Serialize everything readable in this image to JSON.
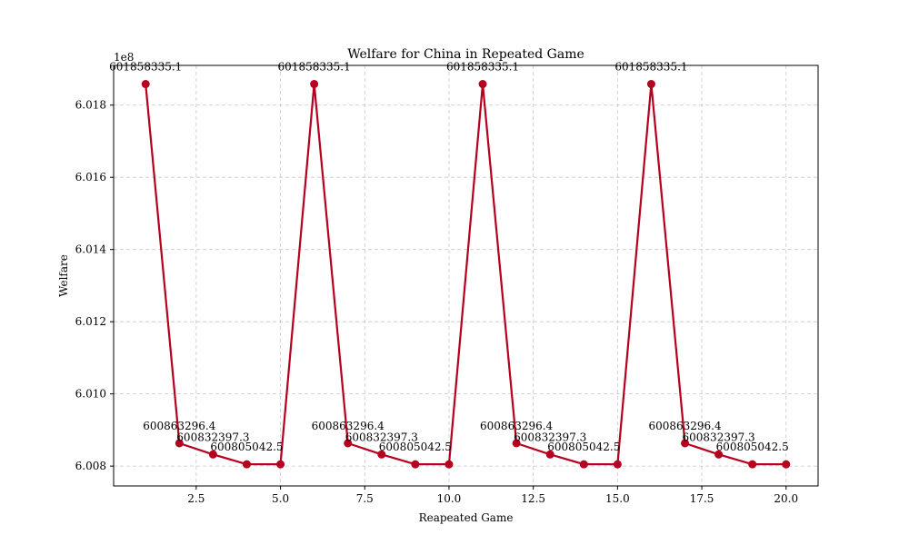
{
  "chart_data": {
    "type": "line",
    "title": "Welfare for China in Repeated Game",
    "xlabel": "Reapeated Game",
    "ylabel": "Welfare",
    "offset_text": "1e8",
    "xlim": [
      0.05,
      20.95
    ],
    "ylim": [
      600745000,
      601910000
    ],
    "xticks": [
      2.5,
      5.0,
      7.5,
      10.0,
      12.5,
      15.0,
      17.5,
      20.0
    ],
    "xtick_labels": [
      "2.5",
      "5.0",
      "7.5",
      "10.0",
      "12.5",
      "15.0",
      "17.5",
      "20.0"
    ],
    "yticks": [
      600800000,
      601000000,
      601200000,
      601400000,
      601600000,
      601800000
    ],
    "ytick_labels": [
      "6.008",
      "6.010",
      "6.012",
      "6.014",
      "6.016",
      "6.018"
    ],
    "grid": true,
    "legend": "none",
    "series": [
      {
        "color": "#b5001f",
        "marker": "circle",
        "x": [
          1,
          2,
          3,
          4,
          5,
          6,
          7,
          8,
          9,
          10,
          11,
          12,
          13,
          14,
          15,
          16,
          17,
          18,
          19,
          20
        ],
        "y": [
          601858335.1,
          600863296.4,
          600832397.3,
          600805042.5,
          600805042.5,
          601858335.1,
          600863296.4,
          600832397.3,
          600805042.5,
          600805042.5,
          601858335.1,
          600863296.4,
          600832397.3,
          600805042.5,
          600805042.5,
          601858335.1,
          600863296.4,
          600832397.3,
          600805042.5,
          600805042.5
        ]
      }
    ],
    "annotations": [
      {
        "x": 1,
        "y": 601858335.1,
        "text": "601858335.1"
      },
      {
        "x": 2,
        "y": 600863296.4,
        "text": "600863296.4"
      },
      {
        "x": 3,
        "y": 600832397.3,
        "text": "600832397.3"
      },
      {
        "x": 4,
        "y": 600805042.5,
        "text": "600805042.5"
      },
      {
        "x": 6,
        "y": 601858335.1,
        "text": "601858335.1"
      },
      {
        "x": 7,
        "y": 600863296.4,
        "text": "600863296.4"
      },
      {
        "x": 8,
        "y": 600832397.3,
        "text": "600832397.3"
      },
      {
        "x": 9,
        "y": 600805042.5,
        "text": "600805042.5"
      },
      {
        "x": 11,
        "y": 601858335.1,
        "text": "601858335.1"
      },
      {
        "x": 12,
        "y": 600863296.4,
        "text": "600863296.4"
      },
      {
        "x": 13,
        "y": 600832397.3,
        "text": "600832397.3"
      },
      {
        "x": 14,
        "y": 600805042.5,
        "text": "600805042.5"
      },
      {
        "x": 16,
        "y": 601858335.1,
        "text": "601858335.1"
      },
      {
        "x": 17,
        "y": 600863296.4,
        "text": "600863296.4"
      },
      {
        "x": 18,
        "y": 600832397.3,
        "text": "600832397.3"
      },
      {
        "x": 19,
        "y": 600805042.5,
        "text": "600805042.5"
      }
    ]
  }
}
